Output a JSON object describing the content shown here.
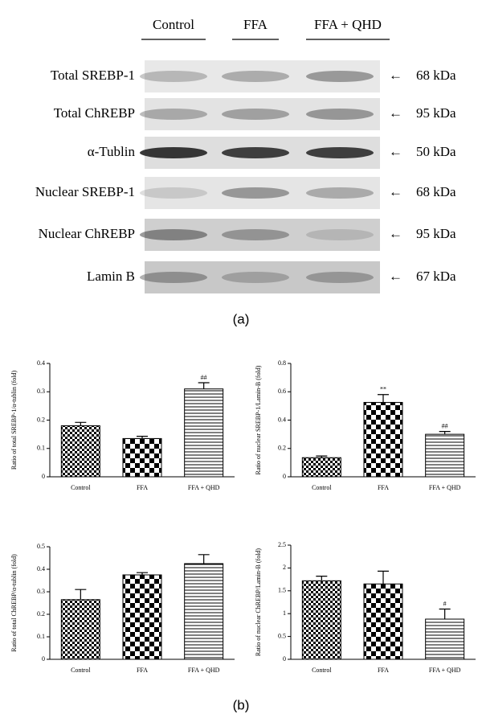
{
  "blot": {
    "lanes": [
      "Control",
      "FFA",
      "FFA + QHD"
    ],
    "rows": [
      {
        "label": "Total SREBP-1",
        "size": "68 kDa"
      },
      {
        "label": "Total ChREBP",
        "size": "95 kDa"
      },
      {
        "label": "α-Tublin",
        "size": "50 kDa"
      },
      {
        "label": "Nuclear SREBP-1",
        "size": "68 kDa"
      },
      {
        "label": "Nuclear ChREBP",
        "size": "95 kDa"
      },
      {
        "label": "Lamin B",
        "size": "67 kDa"
      }
    ],
    "panel_label": "(a)"
  },
  "chart_data": [
    {
      "type": "bar",
      "ylabel": "Ratio of total SREBP-1/α-tublin (fold)",
      "categories": [
        "Control",
        "FFA",
        "FFA + QHD"
      ],
      "values": [
        0.18,
        0.135,
        0.31
      ],
      "errors": [
        0.012,
        0.008,
        0.022
      ],
      "annotations": [
        null,
        null,
        "##"
      ],
      "ylim": [
        0,
        0.4
      ],
      "yticks": [
        0,
        0.1,
        0.2,
        0.3,
        0.4
      ],
      "color": "#000000"
    },
    {
      "type": "bar",
      "ylabel": "Ratio of nuclear SREBP-1/Lamin-B (fold)",
      "categories": [
        "Control",
        "FFA",
        "FFA + QHD"
      ],
      "values": [
        0.135,
        0.525,
        0.3
      ],
      "errors": [
        0.012,
        0.055,
        0.02
      ],
      "annotations": [
        null,
        "**",
        "##"
      ],
      "ylim": [
        0,
        0.8
      ],
      "yticks": [
        0,
        0.2,
        0.4,
        0.6,
        0.8
      ],
      "color": "#000000"
    },
    {
      "type": "bar",
      "ylabel": "Ratio of total ChREBP/α-tublin (fold)",
      "categories": [
        "Control",
        "FFA",
        "FFA + QHD"
      ],
      "values": [
        0.265,
        0.375,
        0.425
      ],
      "errors": [
        0.045,
        0.01,
        0.04
      ],
      "annotations": [
        null,
        null,
        null
      ],
      "ylim": [
        0,
        0.5
      ],
      "yticks": [
        0,
        0.1,
        0.2,
        0.3,
        0.4,
        0.5
      ],
      "color": "#000000"
    },
    {
      "type": "bar",
      "ylabel": "Ratio of nuclear ChREBP/Lamin-B (fold)",
      "categories": [
        "Control",
        "FFA",
        "FFA + QHD"
      ],
      "values": [
        1.72,
        1.65,
        0.88
      ],
      "errors": [
        0.1,
        0.28,
        0.22
      ],
      "annotations": [
        null,
        null,
        "#"
      ],
      "ylim": [
        0,
        2.5
      ],
      "yticks": [
        0,
        0.5,
        1,
        1.5,
        2,
        2.5
      ],
      "color": "#000000"
    }
  ],
  "panel_label": "(b)"
}
